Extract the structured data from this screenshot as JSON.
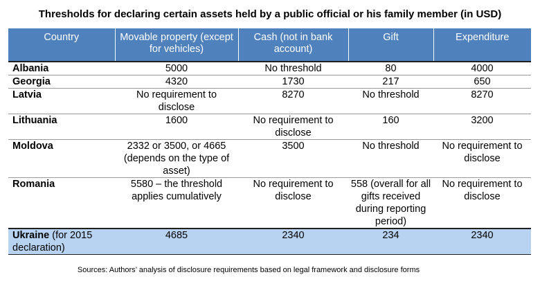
{
  "title": "Thresholds for declaring certain assets held by a public official or his family member (in USD)",
  "headers": [
    "Country",
    "Movable property (except for vehicles)",
    "Cash (not in bank account)",
    "Gift",
    "Expenditure"
  ],
  "rows": [
    [
      "Albania",
      "5000",
      "No threshold",
      "80",
      "4000"
    ],
    [
      "Georgia",
      "4320",
      "1730",
      "217",
      "650"
    ],
    [
      "Latvia",
      "No requirement to disclose",
      "8270",
      "No threshold",
      "8270"
    ],
    [
      "Lithuania",
      "1600",
      "No requirement to disclose",
      "160",
      "3200"
    ],
    [
      "Moldova",
      "2332 or 3500, or 4665 (depends on the type of asset)",
      "3500",
      "No threshold",
      "No requirement to disclose"
    ],
    [
      "Romania",
      "5580 – the threshold applies cumulatively",
      "No requirement to disclose",
      "558 (overall for all gifts received during reporting period)",
      "No requirement to disclose"
    ],
    [
      "Ukraine",
      "4685",
      "2340",
      "234",
      "2340"
    ]
  ],
  "ukraine_note": "(for 2015 declaration)",
  "source": "Sources: Authors’ analysis of disclosure requirements based on legal framework and disclosure forms"
}
